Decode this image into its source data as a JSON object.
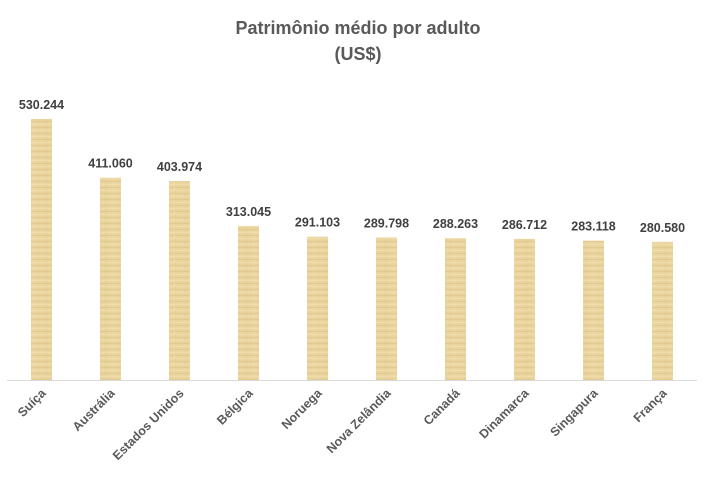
{
  "chart_data": {
    "type": "bar",
    "title_line1": "Patrimônio médio por adulto",
    "title_line2": "(US$)",
    "categories": [
      "Suíça",
      "Austrália",
      "Estados Unidos",
      "Bélgica",
      "Noruega",
      "Nova Zelândia",
      "Canadá",
      "Dinamarca",
      "Singapura",
      "França"
    ],
    "values": [
      530244,
      411060,
      403974,
      313045,
      291103,
      289798,
      288263,
      286712,
      283118,
      280580
    ],
    "value_labels": [
      "530.244",
      "411.060",
      "403.974",
      "313.045",
      "291.103",
      "289.798",
      "288.263",
      "286.712",
      "283.118",
      "280.580"
    ],
    "ylim": [
      0,
      530244
    ],
    "grid": false,
    "legend": "none",
    "bar_color": "#e6cf9a",
    "axis_color": "#d9d9d9"
  }
}
